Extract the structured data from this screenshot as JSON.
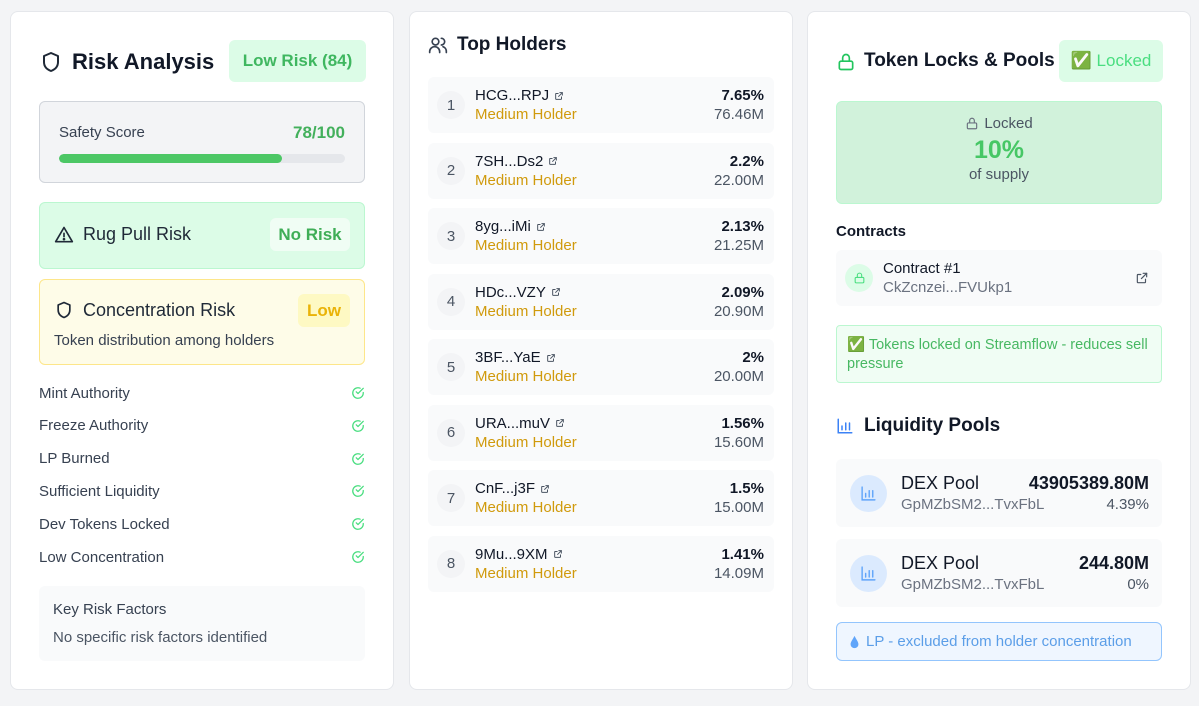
{
  "risk": {
    "title": "Risk Analysis",
    "badge": "Low Risk (84)",
    "safety": {
      "label": "Safety Score",
      "value": "78/100",
      "progress": 0.78
    },
    "rug": {
      "title": "Rug Pull Risk",
      "status": "No Risk"
    },
    "concentration": {
      "title": "Concentration Risk",
      "status": "Low",
      "description": "Token distribution among holders"
    },
    "checks": [
      "Mint Authority",
      "Freeze Authority",
      "LP Burned",
      "Sufficient Liquidity",
      "Dev Tokens Locked",
      "Low Concentration"
    ],
    "factors": {
      "title": "Key Risk Factors",
      "text": "No specific risk factors identified"
    }
  },
  "holders": {
    "title": "Top Holders",
    "items": [
      {
        "rank": "1",
        "address": "HCG...RPJ",
        "type": "Medium Holder",
        "percent": "7.65%",
        "amount": "76.46M"
      },
      {
        "rank": "2",
        "address": "7SH...Ds2",
        "type": "Medium Holder",
        "percent": "2.2%",
        "amount": "22.00M"
      },
      {
        "rank": "3",
        "address": "8yg...iMi",
        "type": "Medium Holder",
        "percent": "2.13%",
        "amount": "21.25M"
      },
      {
        "rank": "4",
        "address": "HDc...VZY",
        "type": "Medium Holder",
        "percent": "2.09%",
        "amount": "20.90M"
      },
      {
        "rank": "5",
        "address": "3BF...YaE",
        "type": "Medium Holder",
        "percent": "2%",
        "amount": "20.00M"
      },
      {
        "rank": "6",
        "address": "URA...muV",
        "type": "Medium Holder",
        "percent": "1.56%",
        "amount": "15.60M"
      },
      {
        "rank": "7",
        "address": "CnF...j3F",
        "type": "Medium Holder",
        "percent": "1.5%",
        "amount": "15.00M"
      },
      {
        "rank": "8",
        "address": "9Mu...9XM",
        "type": "Medium Holder",
        "percent": "1.41%",
        "amount": "14.09M"
      }
    ]
  },
  "locks": {
    "title": "Token Locks & Pools",
    "badge": "✅ Locked",
    "panel": {
      "label": "Locked",
      "percent": "10%",
      "sub": "of supply"
    },
    "contracts_heading": "Contracts",
    "contract": {
      "name": "Contract #1",
      "address": "CkZcnzei...FVUkp1"
    },
    "streamflow_notice": "✅ Tokens locked on Streamflow - reduces sell pressure",
    "pools_heading": "Liquidity Pools",
    "pools": [
      {
        "name": "DEX Pool",
        "address": "GpMZbSM2...TvxFbL",
        "value": "43905389.80M",
        "percent": "4.39%"
      },
      {
        "name": "DEX Pool",
        "address": "GpMZbSM2...TvxFbL",
        "value": "244.80M",
        "percent": "0%"
      }
    ],
    "lp_notice": "LP - excluded from holder concentration"
  }
}
